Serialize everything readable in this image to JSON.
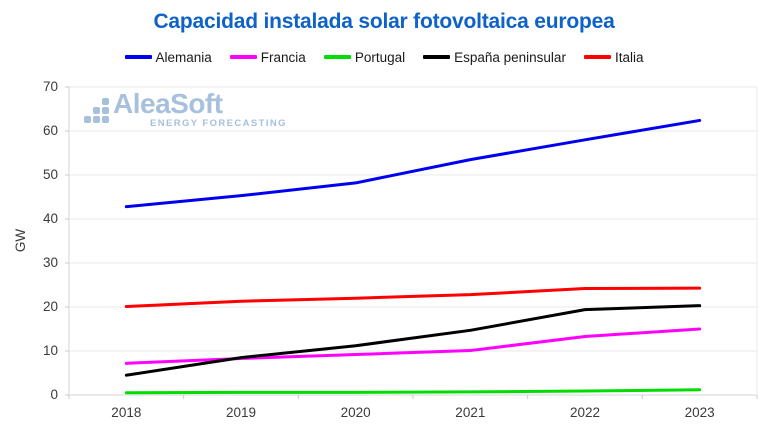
{
  "title": "Capacidad instalada solar fotovoltaica europea",
  "watermark": {
    "name": "AleaSoft",
    "tagline": "ENERGY FORECASTING"
  },
  "colors": {
    "title": "#0e62c8",
    "watermark": "#a6c0dd",
    "grid": "#e9e9e9",
    "spine": "#d6d6d6",
    "tick": "#c9c9c9",
    "tick_label": "#3a3a3a"
  },
  "chart_data": {
    "type": "line",
    "categories": [
      "2018",
      "2019",
      "2020",
      "2021",
      "2022",
      "2023"
    ],
    "series": [
      {
        "id": "alemania",
        "name": "Alemania",
        "color": "#0000f0",
        "values": [
          42.8,
          45.3,
          48.2,
          53.5,
          58.0,
          62.4
        ]
      },
      {
        "id": "francia",
        "name": "Francia",
        "color": "#ff00ff",
        "values": [
          7.2,
          8.3,
          9.2,
          10.1,
          13.3,
          15.0
        ]
      },
      {
        "id": "portugal",
        "name": "Portugal",
        "color": "#00dd00",
        "values": [
          0.5,
          0.6,
          0.6,
          0.7,
          0.9,
          1.2
        ]
      },
      {
        "id": "espana-peninsular",
        "name": "España peninsular",
        "color": "#000000",
        "values": [
          4.5,
          8.5,
          11.2,
          14.7,
          19.4,
          20.3
        ]
      },
      {
        "id": "italia",
        "name": "Italia",
        "color": "#ff0000",
        "values": [
          20.1,
          21.3,
          22.0,
          22.8,
          24.2,
          24.3
        ]
      }
    ],
    "xlabel": "",
    "ylabel": "GW",
    "ylim": [
      0,
      70
    ],
    "yticks": [
      0,
      10,
      20,
      30,
      40,
      50,
      60,
      70
    ],
    "grid": "horizontal",
    "legend_position": "top"
  }
}
